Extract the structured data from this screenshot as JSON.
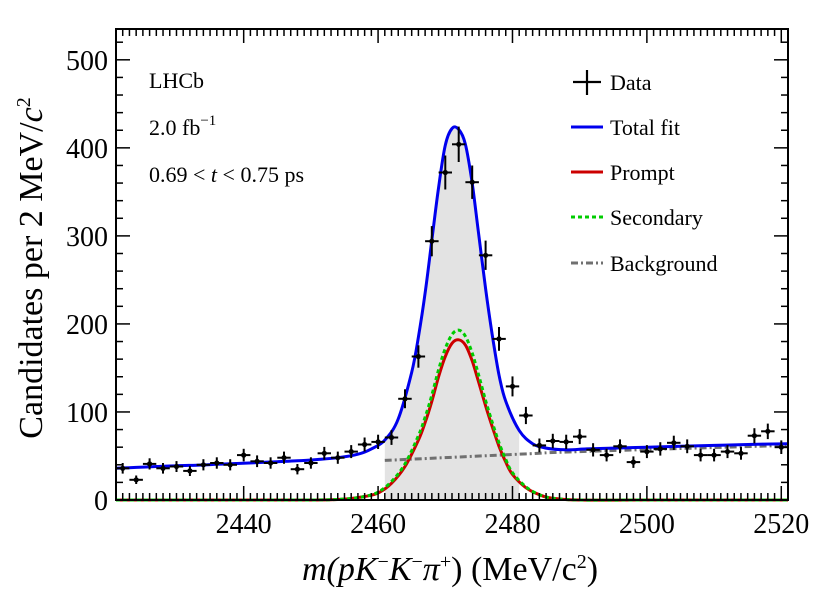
{
  "chart_data": {
    "type": "scatter",
    "xlabel": {
      "main": "m(pK",
      "minus1": "−",
      "k2": "K",
      "minus2": "−",
      "pi": "π",
      "plus": "+",
      "rest": ") (MeV/c",
      "sq": "2",
      "close": ")"
    },
    "ylabel": {
      "main": "Candidates per 2 MeV/",
      "c": "c",
      "sq": "2"
    },
    "xlim": [
      2421,
      2521
    ],
    "ylim": [
      0,
      535
    ],
    "xticks": [
      2440,
      2460,
      2480,
      2500,
      2520
    ],
    "yticks": [
      0,
      100,
      200,
      300,
      400,
      500
    ],
    "annotations": {
      "experiment": "LHCb",
      "lumi": "2.0 fb",
      "lumi_sup": "−1",
      "cut_left": "0.69 < ",
      "cut_var": "t",
      "cut_right": " < 0.75 ps"
    },
    "legend": [
      "Data",
      "Total fit",
      "Prompt",
      "Secondary",
      "Background"
    ],
    "legend_position": "top-right",
    "colors": {
      "data": "#000000",
      "total": "#0000ee",
      "prompt": "#cc0000",
      "secondary": "#00cc00",
      "background": "#707070",
      "fill": "#e3e3e3"
    },
    "signal_window": [
      2461,
      2481
    ],
    "series": [
      {
        "name": "Data",
        "x": [
          2422,
          2424,
          2426,
          2428,
          2430,
          2432,
          2434,
          2436,
          2438,
          2440,
          2442,
          2444,
          2446,
          2448,
          2450,
          2452,
          2454,
          2456,
          2458,
          2460,
          2462,
          2464,
          2466,
          2468,
          2470,
          2472,
          2474,
          2476,
          2478,
          2480,
          2482,
          2484,
          2486,
          2488,
          2490,
          2492,
          2494,
          2496,
          2498,
          2500,
          2502,
          2504,
          2506,
          2508,
          2510,
          2512,
          2514,
          2516,
          2518,
          2520
        ],
        "y": [
          36,
          23,
          41,
          36,
          38,
          33,
          40,
          42,
          40,
          51,
          44,
          42,
          48,
          35,
          42,
          53,
          48,
          55,
          63,
          66,
          71,
          115,
          163,
          294,
          372,
          404,
          361,
          278,
          183,
          129,
          96,
          62,
          67,
          66,
          72,
          57,
          51,
          61,
          43,
          55,
          58,
          65,
          61,
          51,
          51,
          55,
          53,
          73,
          78,
          60
        ]
      },
      {
        "name": "Total fit",
        "x": [
          2421,
          2424,
          2427,
          2430,
          2433,
          2436,
          2439,
          2442,
          2445,
          2448,
          2451,
          2454,
          2457,
          2459,
          2461,
          2463,
          2465,
          2466,
          2467,
          2468,
          2469,
          2470,
          2471,
          2472,
          2473,
          2474,
          2475,
          2476,
          2477,
          2478,
          2479,
          2481,
          2483,
          2485,
          2488,
          2491,
          2495,
          2500,
          2505,
          2510,
          2515,
          2521
        ],
        "y": [
          36,
          37,
          38,
          39,
          39.5,
          40.5,
          41.5,
          42.5,
          43.5,
          44.5,
          46,
          48,
          52,
          58,
          68,
          92,
          145,
          185,
          235,
          295,
          355,
          403,
          422,
          421,
          404,
          360,
          300,
          240,
          187,
          142,
          112,
          79,
          64,
          59,
          57,
          58,
          59,
          60,
          61,
          62,
          63,
          64
        ]
      },
      {
        "name": "Prompt",
        "x": [
          2421,
          2440,
          2450,
          2455,
          2458,
          2460,
          2462,
          2464,
          2466,
          2467,
          2468,
          2469,
          2470,
          2471,
          2472,
          2473,
          2474,
          2475,
          2476,
          2477,
          2478,
          2479,
          2480,
          2482,
          2484,
          2486,
          2490,
          2500,
          2521
        ],
        "y": [
          0,
          0,
          0,
          1,
          4,
          8,
          19,
          38,
          68,
          88,
          112,
          140,
          163,
          178,
          182,
          176,
          158,
          133,
          107,
          83,
          61,
          43,
          29,
          14,
          6,
          2,
          0,
          0,
          0
        ]
      },
      {
        "name": "Secondary",
        "x": [
          2421,
          2440,
          2450,
          2455,
          2458,
          2460,
          2462,
          2464,
          2466,
          2467,
          2468,
          2469,
          2470,
          2471,
          2472,
          2473,
          2474,
          2475,
          2476,
          2477,
          2478,
          2479,
          2480,
          2482,
          2484,
          2486,
          2490,
          2500,
          2521
        ],
        "y": [
          0,
          0,
          0,
          1,
          4,
          9,
          21,
          41,
          73,
          94,
          119,
          148,
          172,
          188,
          193,
          186,
          167,
          141,
          113,
          88,
          65,
          46,
          31,
          15,
          6,
          2,
          0,
          0,
          0
        ]
      },
      {
        "name": "Background",
        "x": [
          2461,
          2481,
          2490,
          2521
        ],
        "y": [
          45,
          52,
          55,
          62
        ]
      }
    ]
  }
}
